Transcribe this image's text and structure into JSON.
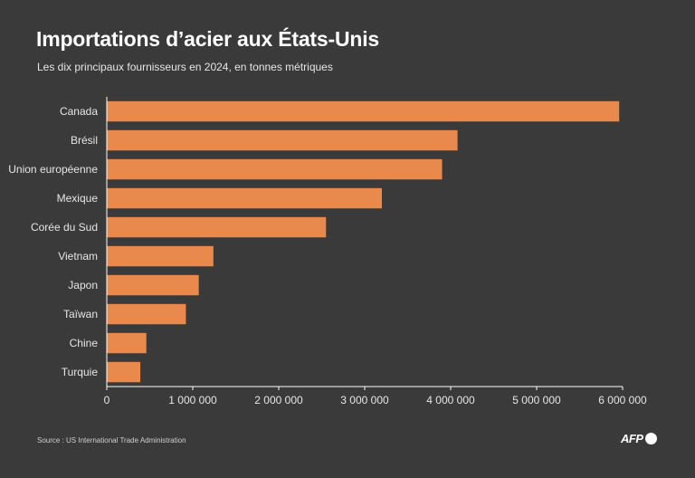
{
  "header": {
    "title": "Importations d’acier aux États-Unis",
    "subtitle": "Les dix principaux fournisseurs en 2024, en tonnes métriques"
  },
  "footer": {
    "source": "Source : US International Trade Administration",
    "logo": "AFP"
  },
  "colors": {
    "background": "#3a3a3a",
    "bar": "#e8894e",
    "axis": "#ffffff",
    "text": "#ffffff"
  },
  "chart_data": {
    "type": "bar",
    "orientation": "horizontal",
    "title": "Importations d’acier aux États-Unis",
    "subtitle": "Les dix principaux fournisseurs en 2024, en tonnes métriques",
    "xlabel": "",
    "ylabel": "",
    "grid": false,
    "xlim": [
      0,
      6000000
    ],
    "x_ticks": [
      0,
      1000000,
      2000000,
      3000000,
      4000000,
      5000000,
      6000000
    ],
    "x_tick_labels": [
      "0",
      "1 000 000",
      "2 000 000",
      "3 000 000",
      "4 000 000",
      "5 000 000",
      "6 000 000"
    ],
    "categories": [
      "Canada",
      "Brésil",
      "Union européenne",
      "Mexique",
      "Corée du Sud",
      "Vietnam",
      "Japon",
      "Taïwan",
      "Chine",
      "Turquie"
    ],
    "values": [
      5960000,
      4080000,
      3900000,
      3200000,
      2550000,
      1240000,
      1070000,
      920000,
      460000,
      390000
    ]
  }
}
